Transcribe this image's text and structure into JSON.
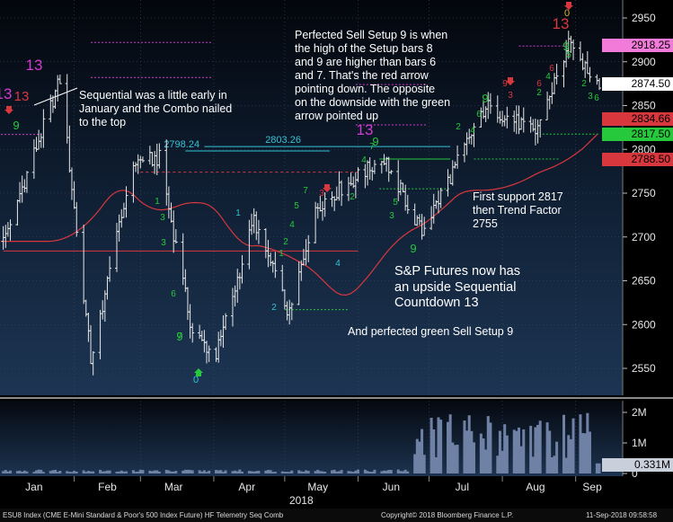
{
  "chart_data": [
    {
      "type": "candlestick",
      "title": "",
      "x_months": [
        "Jan",
        "Feb",
        "Mar",
        "Apr",
        "May",
        "Jun",
        "Jul",
        "Aug",
        "Sep"
      ],
      "x_year": "2018",
      "y_ticks": [
        2550,
        2600,
        2650,
        2700,
        2750,
        2800,
        2850,
        2900,
        2950
      ],
      "ylim": [
        2520,
        2975
      ],
      "grid": true,
      "moving_average_color": "#d9373e",
      "price_path_key_points": [
        {
          "date": "2018-01-02",
          "close": 2695
        },
        {
          "date": "2018-01-26",
          "close": 2880
        },
        {
          "date": "2018-02-08",
          "close": 2560
        },
        {
          "date": "2018-02-26",
          "close": 2785
        },
        {
          "date": "2018-03-09",
          "close": 2790
        },
        {
          "date": "2018-03-23",
          "close": 2590
        },
        {
          "date": "2018-04-02",
          "close": 2565
        },
        {
          "date": "2018-04-18",
          "close": 2720
        },
        {
          "date": "2018-05-03",
          "close": 2610
        },
        {
          "date": "2018-05-14",
          "close": 2735
        },
        {
          "date": "2018-06-12",
          "close": 2790
        },
        {
          "date": "2018-06-28",
          "close": 2705
        },
        {
          "date": "2018-07-25",
          "close": 2850
        },
        {
          "date": "2018-08-15",
          "close": 2820
        },
        {
          "date": "2018-08-29",
          "close": 2918
        },
        {
          "date": "2018-09-11",
          "close": 2875
        }
      ],
      "price_tags": [
        {
          "value": "2918.25",
          "color": "#f27bd9"
        },
        {
          "value": "2874.50",
          "color": "#ffffff"
        },
        {
          "value": "2834.66",
          "color": "#d9373e"
        },
        {
          "value": "2817.50",
          "color": "#26c83c"
        },
        {
          "value": "2788.50",
          "color": "#d9373e"
        }
      ],
      "level_labels": [
        "2798.24",
        "2803.26"
      ]
    },
    {
      "type": "bar",
      "title": "",
      "series": "volume",
      "y_ticks": [
        "2M",
        "1M",
        "0"
      ],
      "last_value_tag": "0.331M",
      "volume_rise_start": "2018-06-25",
      "peak_value_millions": 2.1
    }
  ],
  "annotations": {
    "sequential_note": "Sequential was a little early in\nJanuary and the Combo nailed\nto the top",
    "setup_note": "Perfected Sell Setup 9 is when\nthe high of the Setup bars 8\nand 9 are higher than bars 6\nand 7.  That's the red arrow\npointing down.  The opposite\non the downside with the green\narrow pointed up",
    "support_note": "First support 2817\nthen Trend Factor\n2755",
    "sequential_countdown_note": "S&P Futures now has\nan upside Sequential\nCountdown 13",
    "perfected_note": "And perfected green Sell Setup 9"
  },
  "footer": {
    "left": "ESU8 Index (CME E-Mini Standard & Poor's 500 Index Future) HF Telemetry Seq Comb",
    "center": "Copyright© 2018 Bloomberg Finance L.P.",
    "right": "11-Sep-2018 09:58:58"
  }
}
